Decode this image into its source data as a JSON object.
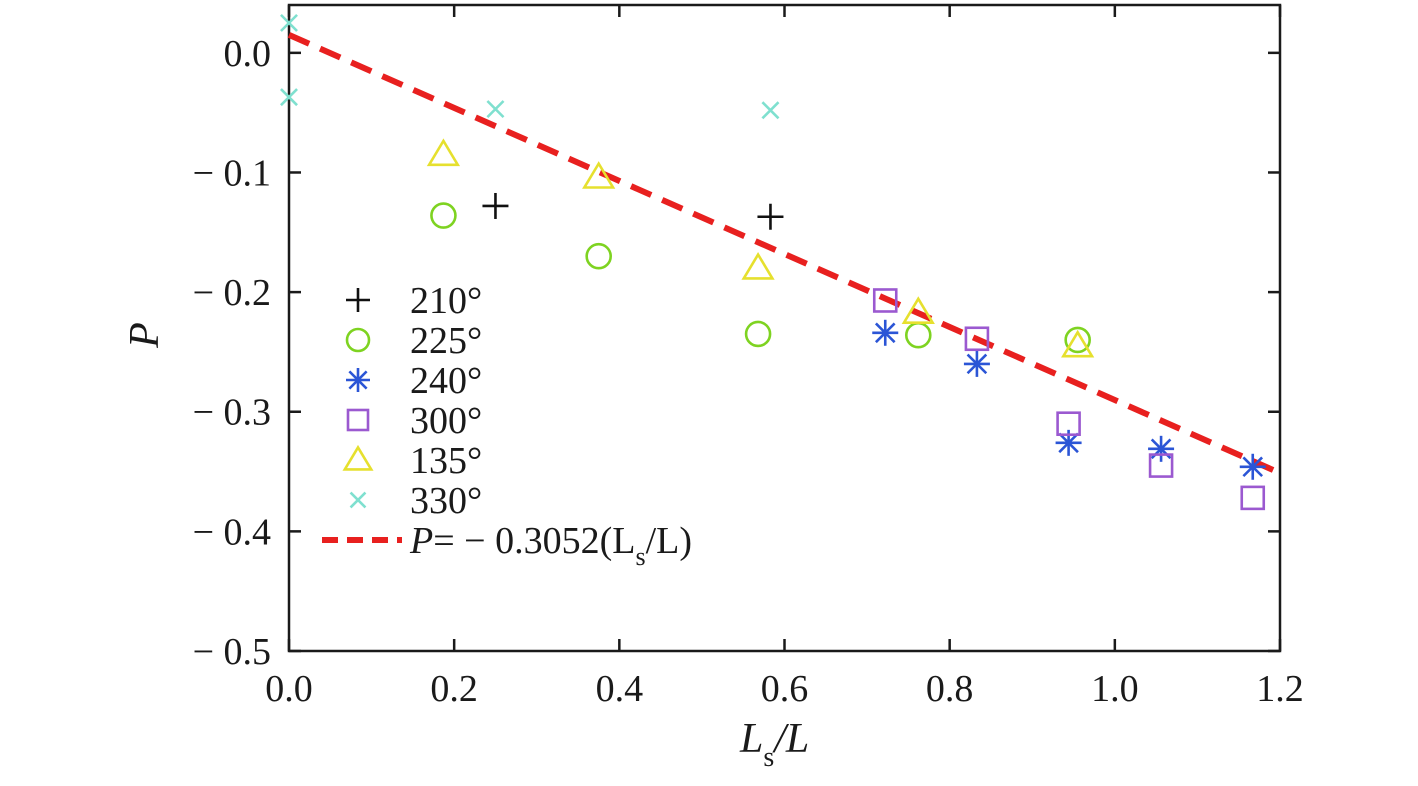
{
  "chart_data": {
    "type": "scatter",
    "title": "",
    "xlabel": "L",
    "xlabel_sub": "s",
    "xlabel_tail": "/L",
    "ylabel": "P",
    "xlim": [
      0.0,
      1.2
    ],
    "ylim": [
      -0.5,
      0.04
    ],
    "x_ticks": [
      0.0,
      0.2,
      0.4,
      0.6,
      0.8,
      1.0,
      1.2
    ],
    "x_tick_labels": [
      "0.0",
      "0.2",
      "0.4",
      "0.6",
      "0.8",
      "1.0",
      "1.2"
    ],
    "y_ticks": [
      0.0,
      -0.1,
      -0.2,
      -0.3,
      -0.4,
      -0.5
    ],
    "y_tick_labels": [
      "0.0",
      "− 0.1",
      "− 0.2",
      "− 0.3",
      "− 0.4",
      "− 0.5"
    ],
    "grid": false,
    "legend_position": "lower-left",
    "series": [
      {
        "name": "210°",
        "marker": "plus",
        "color": "#111111",
        "x": [
          0.25,
          0.583
        ],
        "y": [
          -0.128,
          -0.137
        ]
      },
      {
        "name": "225°",
        "marker": "circle",
        "color": "#7ed321",
        "x": [
          0.187,
          0.375,
          0.568,
          0.762,
          0.955
        ],
        "y": [
          -0.136,
          -0.17,
          -0.235,
          -0.236,
          -0.24
        ]
      },
      {
        "name": "240°",
        "marker": "asterisk",
        "color": "#2b55d6",
        "x": [
          0.722,
          0.833,
          0.944,
          1.056,
          1.167
        ],
        "y": [
          -0.234,
          -0.26,
          -0.326,
          -0.331,
          -0.346
        ]
      },
      {
        "name": "300°",
        "marker": "square",
        "color": "#9b59d0",
        "x": [
          0.722,
          0.833,
          0.944,
          1.056,
          1.167
        ],
        "y": [
          -0.207,
          -0.239,
          -0.31,
          -0.345,
          -0.372
        ]
      },
      {
        "name": "135°",
        "marker": "triangle",
        "color": "#e6e02e",
        "x": [
          0.187,
          0.375,
          0.568,
          0.762,
          0.955
        ],
        "y": [
          -0.085,
          -0.104,
          -0.18,
          -0.217,
          -0.245
        ]
      },
      {
        "name": "330°",
        "marker": "x",
        "color": "#7fe0cf",
        "x": [
          0.0,
          0.0,
          0.25,
          0.583
        ],
        "y": [
          0.025,
          -0.037,
          -0.047,
          -0.048
        ]
      }
    ],
    "fit_line": {
      "label_prefix": "P",
      "label_mid": "= − 0.3052(L",
      "label_sub": "s",
      "label_tail": "/L)",
      "slope": -0.3052,
      "intercept": 0.015,
      "x_range": [
        0.0,
        1.2
      ],
      "color": "#e8201f",
      "style": "dashed"
    }
  }
}
